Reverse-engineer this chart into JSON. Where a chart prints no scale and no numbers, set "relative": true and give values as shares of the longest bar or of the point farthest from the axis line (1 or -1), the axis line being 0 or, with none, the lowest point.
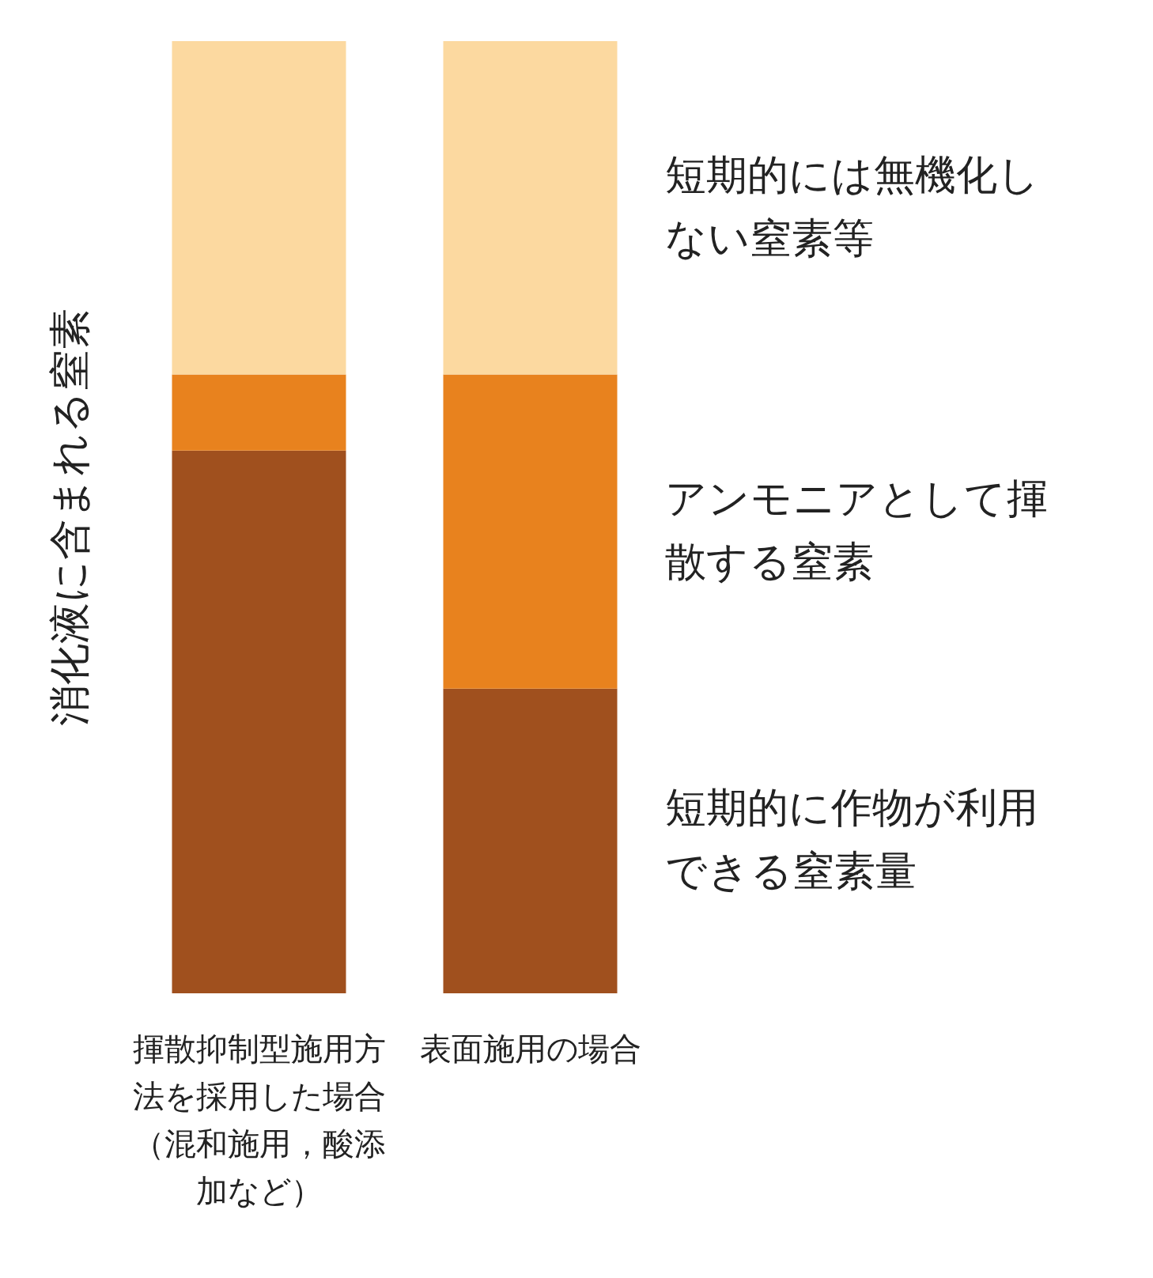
{
  "chart_data": {
    "type": "bar",
    "stacked": true,
    "relative": true,
    "ylabel": "消化液に含まれる窒素",
    "categories": [
      "揮散抑制型施用方法を採用した場合（混和施用，酸添加など）",
      "表面施用の場合"
    ],
    "series": [
      {
        "name": "短期的に作物が利用できる窒素量",
        "color": "#a0501e",
        "values": [
          0.57,
          0.32
        ]
      },
      {
        "name": "アンモニアとして揮散する窒素",
        "color": "#e8821e",
        "values": [
          0.08,
          0.33
        ]
      },
      {
        "name": "短期的には無機化しない窒素等",
        "color": "#fcd9a0",
        "values": [
          0.35,
          0.35
        ]
      }
    ],
    "legend": false,
    "grid": false
  }
}
